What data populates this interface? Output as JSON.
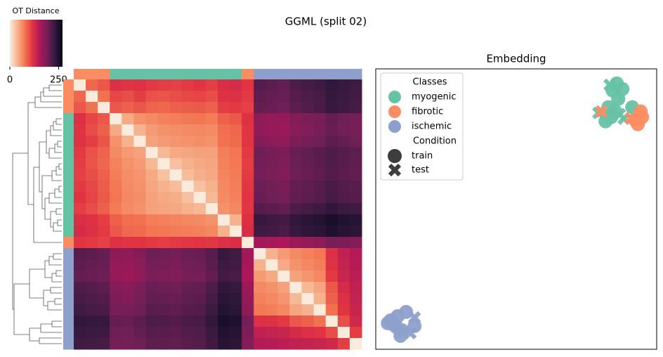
{
  "title": "GGML (split 02)",
  "chart_data": [
    {
      "type": "heatmap",
      "colorbar_label": "OT Distance",
      "clim": [
        0,
        270
      ],
      "cticks": [
        0,
        250
      ],
      "colormap": [
        "#faebdd",
        "#f6b48e",
        "#f37651",
        "#e13342",
        "#ad1759",
        "#701f57",
        "#35193e",
        "#03051a"
      ],
      "groups": [
        "fibrotic",
        "fibrotic",
        "fibrotic",
        "myogenic",
        "myogenic",
        "myogenic",
        "myogenic",
        "myogenic",
        "myogenic",
        "myogenic",
        "myogenic",
        "myogenic",
        "myogenic",
        "myogenic",
        "fibrotic",
        "ischemic",
        "ischemic",
        "ischemic",
        "ischemic",
        "ischemic",
        "ischemic",
        "ischemic",
        "ischemic",
        "ischemic"
      ],
      "matrix": [
        [
          0,
          85,
          95,
          120,
          115,
          118,
          112,
          110,
          108,
          112,
          116,
          110,
          122,
          125,
          115,
          210,
          205,
          200,
          215,
          220,
          225,
          235,
          230,
          225
        ],
        [
          85,
          0,
          80,
          105,
          100,
          110,
          98,
          96,
          100,
          104,
          106,
          100,
          118,
          120,
          112,
          205,
          200,
          198,
          210,
          215,
          220,
          232,
          228,
          222
        ],
        [
          95,
          80,
          0,
          95,
          90,
          96,
          88,
          86,
          90,
          92,
          94,
          90,
          110,
          112,
          108,
          200,
          198,
          195,
          205,
          212,
          218,
          230,
          226,
          220
        ],
        [
          120,
          105,
          95,
          0,
          45,
          60,
          65,
          70,
          72,
          75,
          78,
          74,
          90,
          95,
          118,
          175,
          170,
          168,
          180,
          185,
          190,
          200,
          195,
          190
        ],
        [
          115,
          100,
          90,
          45,
          0,
          40,
          55,
          60,
          62,
          64,
          66,
          64,
          82,
          86,
          115,
          172,
          168,
          165,
          178,
          182,
          188,
          198,
          192,
          188
        ],
        [
          118,
          110,
          96,
          60,
          40,
          0,
          50,
          55,
          58,
          60,
          62,
          60,
          80,
          84,
          116,
          180,
          176,
          172,
          185,
          190,
          195,
          205,
          200,
          195
        ],
        [
          112,
          98,
          88,
          65,
          55,
          50,
          0,
          35,
          45,
          48,
          50,
          50,
          72,
          78,
          112,
          195,
          190,
          186,
          198,
          202,
          208,
          215,
          210,
          205
        ],
        [
          110,
          96,
          86,
          70,
          60,
          55,
          35,
          0,
          30,
          40,
          45,
          48,
          70,
          76,
          110,
          192,
          188,
          184,
          196,
          200,
          206,
          214,
          208,
          204
        ],
        [
          108,
          100,
          90,
          72,
          62,
          58,
          45,
          30,
          0,
          32,
          42,
          46,
          68,
          74,
          112,
          190,
          186,
          182,
          194,
          198,
          204,
          212,
          206,
          202
        ],
        [
          112,
          104,
          92,
          75,
          64,
          60,
          48,
          40,
          32,
          0,
          30,
          40,
          66,
          72,
          114,
          196,
          192,
          188,
          200,
          204,
          210,
          218,
          212,
          208
        ],
        [
          116,
          106,
          94,
          78,
          66,
          62,
          50,
          45,
          42,
          30,
          0,
          35,
          64,
          70,
          116,
          198,
          194,
          190,
          202,
          206,
          212,
          220,
          214,
          210
        ],
        [
          110,
          100,
          90,
          74,
          64,
          60,
          50,
          48,
          46,
          40,
          35,
          0,
          60,
          66,
          114,
          210,
          206,
          202,
          215,
          220,
          226,
          235,
          228,
          224
        ],
        [
          122,
          118,
          110,
          90,
          82,
          80,
          72,
          70,
          68,
          66,
          64,
          60,
          0,
          40,
          120,
          230,
          226,
          222,
          235,
          240,
          245,
          252,
          246,
          242
        ],
        [
          125,
          120,
          112,
          95,
          86,
          84,
          78,
          76,
          74,
          72,
          70,
          66,
          40,
          0,
          122,
          225,
          222,
          218,
          230,
          236,
          240,
          248,
          242,
          238
        ],
        [
          115,
          112,
          108,
          118,
          115,
          116,
          112,
          110,
          112,
          114,
          116,
          114,
          120,
          122,
          0,
          160,
          158,
          155,
          165,
          170,
          175,
          190,
          185,
          180
        ],
        [
          210,
          205,
          200,
          175,
          172,
          180,
          195,
          192,
          190,
          196,
          198,
          210,
          230,
          225,
          160,
          0,
          40,
          55,
          65,
          70,
          75,
          120,
          140,
          150
        ],
        [
          205,
          200,
          198,
          170,
          168,
          176,
          190,
          188,
          186,
          192,
          194,
          206,
          226,
          222,
          158,
          40,
          0,
          45,
          60,
          66,
          72,
          118,
          138,
          148
        ],
        [
          200,
          198,
          195,
          168,
          165,
          172,
          186,
          184,
          182,
          188,
          190,
          202,
          222,
          218,
          155,
          55,
          45,
          0,
          50,
          58,
          66,
          112,
          135,
          145
        ],
        [
          215,
          210,
          205,
          180,
          178,
          185,
          198,
          196,
          194,
          200,
          202,
          215,
          235,
          230,
          165,
          65,
          60,
          50,
          0,
          35,
          48,
          95,
          125,
          140
        ],
        [
          220,
          215,
          212,
          185,
          182,
          190,
          202,
          200,
          198,
          204,
          206,
          220,
          240,
          236,
          170,
          70,
          66,
          58,
          35,
          0,
          40,
          90,
          120,
          138
        ],
        [
          225,
          220,
          218,
          190,
          188,
          195,
          208,
          206,
          204,
          210,
          212,
          226,
          245,
          240,
          175,
          75,
          72,
          66,
          48,
          40,
          0,
          80,
          115,
          135
        ],
        [
          235,
          232,
          230,
          200,
          198,
          205,
          215,
          214,
          212,
          218,
          220,
          235,
          252,
          248,
          190,
          120,
          118,
          112,
          95,
          90,
          80,
          0,
          100,
          130
        ],
        [
          230,
          228,
          226,
          195,
          192,
          200,
          210,
          208,
          206,
          212,
          214,
          228,
          246,
          242,
          185,
          140,
          138,
          135,
          125,
          120,
          115,
          100,
          0,
          110
        ],
        [
          225,
          222,
          220,
          190,
          188,
          195,
          205,
          204,
          202,
          208,
          210,
          224,
          242,
          238,
          180,
          150,
          148,
          145,
          140,
          138,
          135,
          130,
          110,
          0
        ]
      ]
    },
    {
      "type": "scatter",
      "title": "Embedding",
      "xlim": [
        0,
        100
      ],
      "ylim": [
        0,
        100
      ],
      "legend_title": "Classes",
      "legend_loc": "upper left",
      "marker_title": "Condition",
      "markers": [
        {
          "name": "train",
          "shape": "circle"
        },
        {
          "name": "test",
          "shape": "x"
        }
      ],
      "series": [
        {
          "name": "myogenic",
          "color": "#66c2a5",
          "x": [
            85.8,
            84.3,
            87.8,
            83.3,
            86.3,
            82.8,
            85.3,
            81.8,
            91.3,
            88.3,
            79.3,
            86.8,
            83.8
          ],
          "y": [
            94.8,
            92.3,
            92.8,
            94.3,
            89.3,
            86.3,
            84.8,
            81.3,
            86.3,
            82.3,
            84.3,
            83.8,
            82.8
          ],
          "condition": [
            "train",
            "train",
            "train",
            "test",
            "train",
            "train",
            "train",
            "train",
            "train",
            "test",
            "test",
            "test",
            "train"
          ]
        },
        {
          "name": "fibrotic",
          "color": "#fc8d62",
          "x": [
            94.3,
            93.3,
            92.3,
            90.8,
            80.3,
            94.8
          ],
          "y": [
            84.8,
            80.3,
            81.8,
            82.3,
            84.8,
            82.8
          ],
          "condition": [
            "train",
            "train",
            "train",
            "test",
            "test",
            "train"
          ]
        },
        {
          "name": "ischemic",
          "color": "#8da0cb",
          "x": [
            5.3,
            7.8,
            10.8,
            9.3,
            13.8,
            6.3,
            12.3,
            13.8,
            8.8,
            4.3,
            7.5
          ],
          "y": [
            10.3,
            11.8,
            13.3,
            6.8,
            8.3,
            8.8,
            5.8,
            11.3,
            4.8,
            9.3,
            7.8
          ],
          "condition": [
            "train",
            "train",
            "train",
            "train",
            "train",
            "train",
            "test",
            "test",
            "train",
            "train",
            "train"
          ]
        }
      ]
    }
  ]
}
